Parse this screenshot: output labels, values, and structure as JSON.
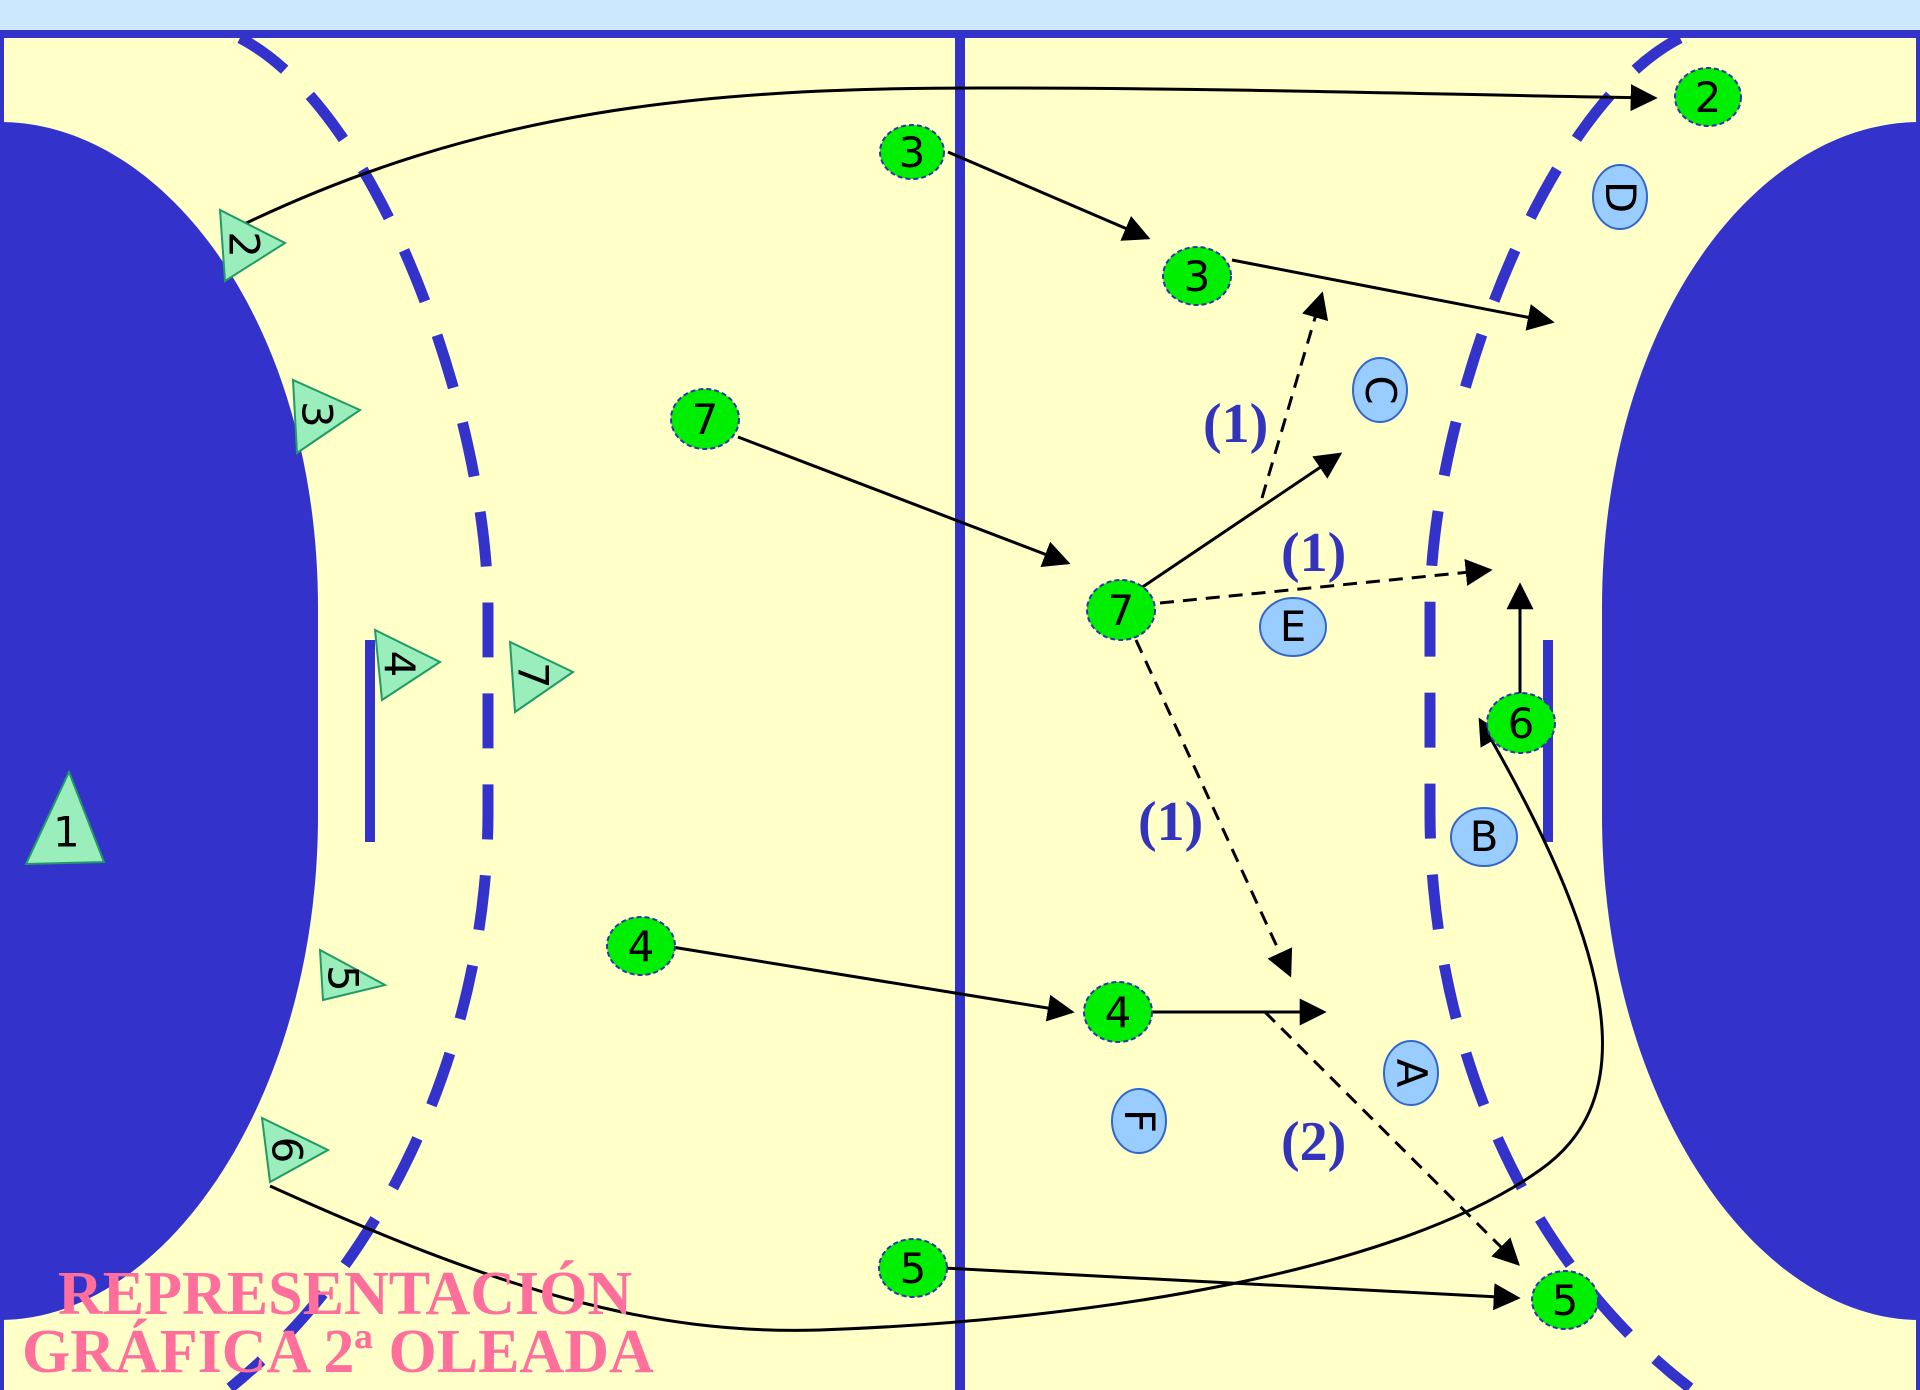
{
  "title_line1": "REPRESENTACIÓN",
  "title_line2": "GRÁFICA 2ª OLEADA",
  "colors": {
    "court": "#ffffc8",
    "line_blue": "#3333cc",
    "attacker": "#00ee00",
    "defender_left": "#99eebb",
    "defender_right": "#99ccff",
    "title": "#ff6f9c",
    "top_band": "#cce8ff"
  },
  "attackers": [
    {
      "id": "att-3-start",
      "label": "3"
    },
    {
      "id": "att-3-end",
      "label": "3"
    },
    {
      "id": "att-7-start",
      "label": "7"
    },
    {
      "id": "att-7-end",
      "label": "7"
    },
    {
      "id": "att-4-start",
      "label": "4"
    },
    {
      "id": "att-4-end",
      "label": "4"
    },
    {
      "id": "att-5-start",
      "label": "5"
    },
    {
      "id": "att-5-end",
      "label": "5"
    },
    {
      "id": "att-2-end",
      "label": "2"
    },
    {
      "id": "att-6-end",
      "label": "6"
    }
  ],
  "defenders_left": [
    {
      "id": "tri-1",
      "label": "1"
    },
    {
      "id": "tri-2",
      "label": "2"
    },
    {
      "id": "tri-3",
      "label": "3"
    },
    {
      "id": "tri-4",
      "label": "4"
    },
    {
      "id": "tri-7",
      "label": "7"
    },
    {
      "id": "tri-5",
      "label": "5"
    },
    {
      "id": "tri-6",
      "label": "6"
    }
  ],
  "defenders_right": [
    {
      "id": "def-d",
      "label": "D"
    },
    {
      "id": "def-c",
      "label": "C"
    },
    {
      "id": "def-e",
      "label": "E"
    },
    {
      "id": "def-b",
      "label": "B"
    },
    {
      "id": "def-a",
      "label": "A"
    },
    {
      "id": "def-f",
      "label": "F"
    }
  ],
  "pass_labels": [
    "(1)",
    "(1)",
    "(1)",
    "(2)"
  ]
}
